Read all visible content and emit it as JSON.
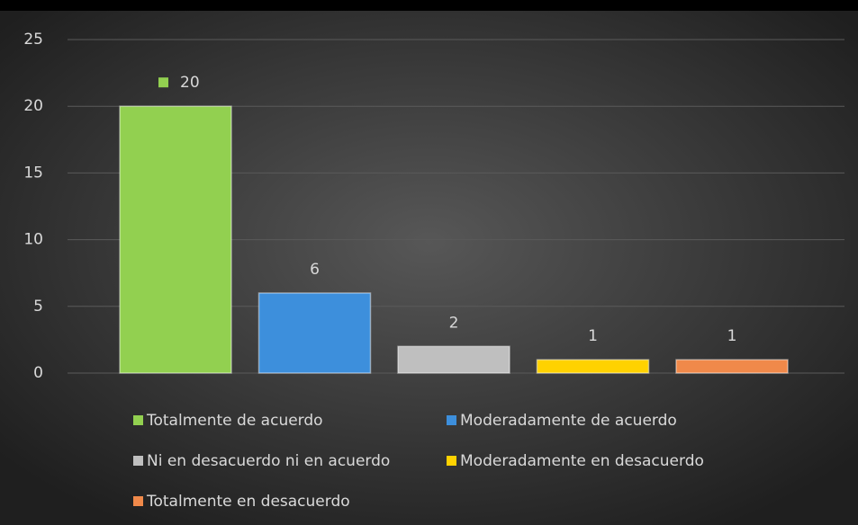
{
  "chart_data": {
    "type": "bar",
    "categories": [
      null
    ],
    "series": [
      {
        "name": "Totalmente de acuerdo",
        "color": "#92d050",
        "values": [
          20
        ]
      },
      {
        "name": "Moderadamente de acuerdo",
        "color": "#3d8fdc",
        "values": [
          6
        ]
      },
      {
        "name": "Ni en desacuerdo ni en acuerdo",
        "color": "#bfbfbf",
        "values": [
          2
        ]
      },
      {
        "name": "Moderadamente en desacuerdo",
        "color": "#ffd200",
        "values": [
          1
        ]
      },
      {
        "name": "Totalmente en desacuerdo",
        "color": "#f0894a",
        "values": [
          1
        ]
      }
    ],
    "ylim": [
      0,
      25
    ],
    "yticks": [
      0,
      5,
      10,
      15,
      20,
      25
    ],
    "grid": true,
    "legend": "bottom"
  }
}
